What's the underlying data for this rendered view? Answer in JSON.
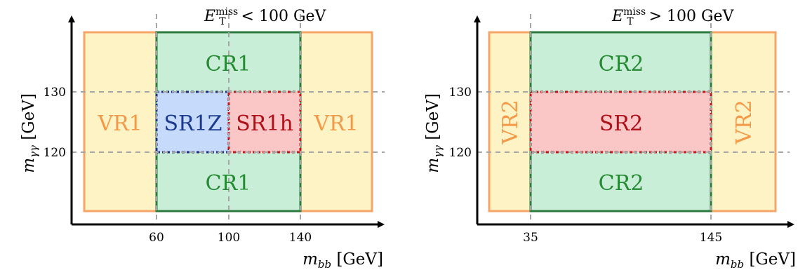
{
  "colors": {
    "vr_fill": "#fdf3c4",
    "vr_stroke": "#f6a468",
    "vr_text": "#f39a4a",
    "cr_fill": "#c9eed7",
    "cr_stroke": "#2c7a3f",
    "cr_text": "#258a33",
    "sr_fill": "#fbc6c6",
    "sr_stroke": "#c4161c",
    "sr_text": "#b0101a",
    "srz_fill": "#c6dbfb",
    "srz_stroke": "#1d2f86",
    "srz_text": "#1c3b8f",
    "grid": "#a6a6a6"
  },
  "left_panel": {
    "condition": {
      "var": "E",
      "sub": "T",
      "sup": "miss",
      "rel": "< 100 GeV"
    },
    "y_axis_label": "m_γγ [GeV]",
    "x_axis_label": "m_bb [GeV]",
    "x_ticks": [
      "60",
      "100",
      "140"
    ],
    "y_ticks": [
      "130",
      "120"
    ],
    "regions": {
      "vr_left": "VR1",
      "vr_right": "VR1",
      "cr_top": "CR1",
      "cr_bottom": "CR1",
      "sr_z": "SR1Z",
      "sr_h": "SR1h"
    }
  },
  "right_panel": {
    "condition": {
      "var": "E",
      "sub": "T",
      "sup": "miss",
      "rel": "> 100 GeV"
    },
    "y_axis_label": "m_γγ [GeV]",
    "x_axis_label": "m_bb [GeV]",
    "x_ticks": [
      "35",
      "145"
    ],
    "y_ticks": [
      "130",
      "120"
    ],
    "regions": {
      "vr_left": "VR2",
      "vr_right": "VR2",
      "cr_top": "CR2",
      "cr_bottom": "CR2",
      "sr": "SR2"
    }
  }
}
